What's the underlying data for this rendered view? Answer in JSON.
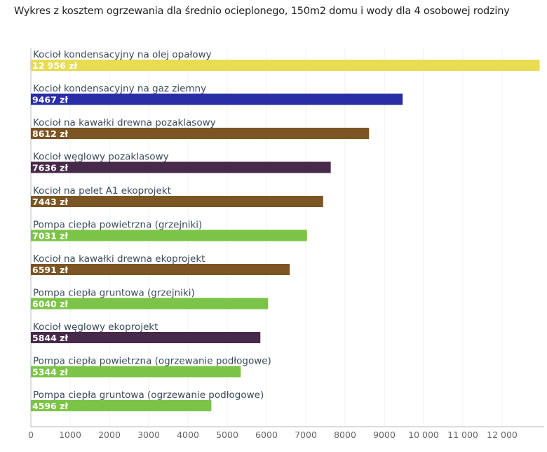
{
  "chart_data": {
    "type": "bar",
    "orientation": "horizontal",
    "title": "Wykres z kosztem ogrzewania dla średnio ocieplonego, 150m2 domu i wody dla 4 osobowej rodziny",
    "xlabel": "",
    "ylabel": "",
    "xlim": [
      0,
      12956
    ],
    "grid": true,
    "categories": [
      "Kocioł kondensacyjny na olej opałowy",
      "Kocioł kondensacyjny na gaz ziemny",
      "Kocioł na kawałki drewna pozaklasowy",
      "Kocioł węglowy pozaklasowy",
      "Kocioł na pelet A1 ekoprojekt",
      "Pompa ciepła powietrzna (grzejniki)",
      "Kocioł na kawałki drewna ekoprojekt",
      "Pompa ciepła gruntowa (grzejniki)",
      "Kocioł węglowy ekoprojekt",
      "Pompa ciepła powietrzna (ogrzewanie podłogowe)",
      "Pompa ciepła gruntowa (ogrzewanie podłogowe)"
    ],
    "values": [
      12956,
      9467,
      8612,
      7636,
      7443,
      7031,
      6591,
      6040,
      5844,
      5344,
      4596
    ],
    "data_labels": [
      "12 956 zł",
      "9467 zł",
      "8612 zł",
      "7636 zł",
      "7443 zł",
      "7031 zł",
      "6591 zł",
      "6040 zł",
      "5844 zł",
      "5344 zł",
      "4596 zł"
    ],
    "colors": [
      "#e8dc52",
      "#2a2ea6",
      "#7b5523",
      "#47294a",
      "#7b5523",
      "#7cc447",
      "#7b5523",
      "#7cc447",
      "#47294a",
      "#7cc447",
      "#7cc447"
    ],
    "ticks": [
      0,
      1000,
      2000,
      3000,
      4000,
      5000,
      6000,
      7000,
      8000,
      9000,
      10000,
      11000,
      12000
    ],
    "tick_labels": [
      "0",
      "1000",
      "2000",
      "3000",
      "4000",
      "5000",
      "6000",
      "7000",
      "8000",
      "9000",
      "10 000",
      "11 000",
      "12 000"
    ]
  }
}
